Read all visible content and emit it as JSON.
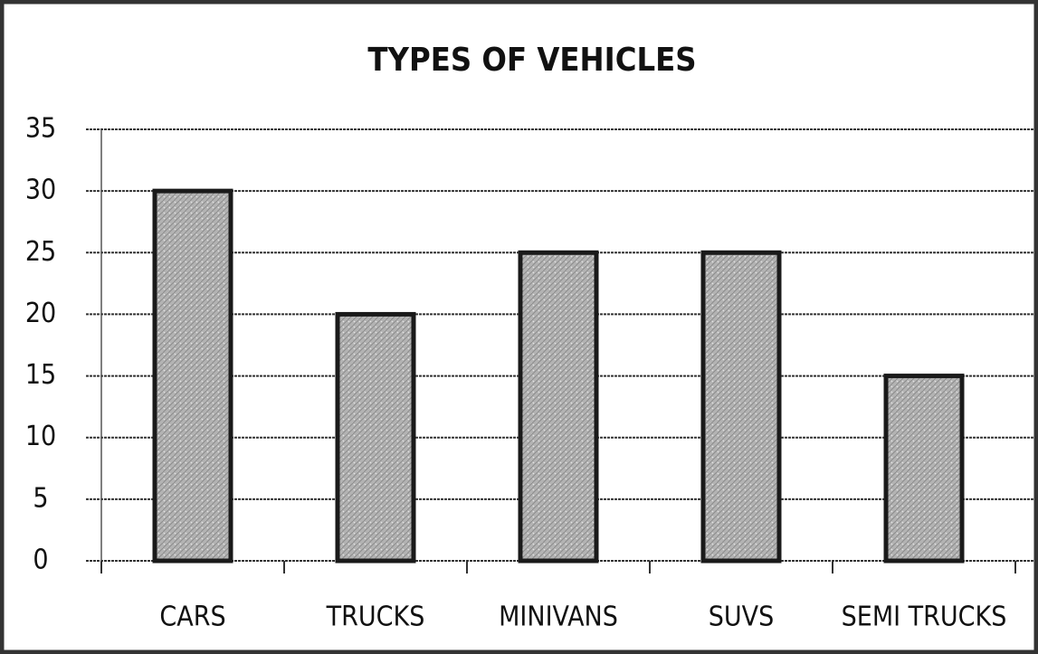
{
  "chart_data": {
    "type": "bar",
    "title": "TYPES OF VEHICLES",
    "categories": [
      "CARS",
      "TRUCKS",
      "MINIVANS",
      "SUVS",
      "SEMI TRUCKS"
    ],
    "values": [
      30,
      20,
      25,
      25,
      15
    ],
    "color": "#b3b3b3",
    "ylim": [
      0,
      35
    ],
    "yticks": [
      0,
      5,
      10,
      15,
      20,
      25,
      30,
      35
    ],
    "grid": true
  }
}
